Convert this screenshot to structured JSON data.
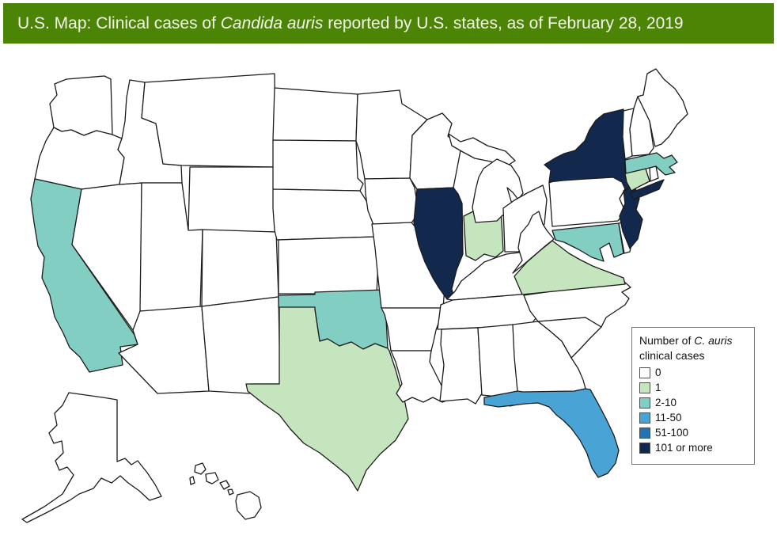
{
  "header": {
    "title_prefix": "U.S. Map: Clinical cases of ",
    "title_italic": "Candida auris",
    "title_suffix": " reported by U.S. states, as of February 28, 2019",
    "background_color": "#4c8405",
    "text_color": "#f4f8ec"
  },
  "legend": {
    "title_prefix": "Number of ",
    "title_italic": "C. auris",
    "title_line2": "clinical cases",
    "items": [
      {
        "label": "0",
        "color": "#ffffff"
      },
      {
        "label": "1",
        "color": "#c5e5bf"
      },
      {
        "label": "2-10",
        "color": "#83cec3"
      },
      {
        "label": "11-50",
        "color": "#4aa3d5"
      },
      {
        "label": "51-100",
        "color": "#2272b6"
      },
      {
        "label": "101 or more",
        "color": "#12294d"
      }
    ]
  },
  "map_data": {
    "type": "choropleth-us-states",
    "metric": "Candida auris clinical cases",
    "as_of": "February 28, 2019",
    "stroke_color": "#1c1c1c",
    "category_colors": {
      "0": "#ffffff",
      "1": "#c5e5bf",
      "2-10": "#83cec3",
      "11-50": "#4aa3d5",
      "51-100": "#2272b6",
      "101 or more": "#12294d"
    },
    "states": [
      {
        "abbr": "WA",
        "name": "Washington",
        "cases": "0"
      },
      {
        "abbr": "OR",
        "name": "Oregon",
        "cases": "0"
      },
      {
        "abbr": "CA",
        "name": "California",
        "cases": "2-10"
      },
      {
        "abbr": "NV",
        "name": "Nevada",
        "cases": "0"
      },
      {
        "abbr": "ID",
        "name": "Idaho",
        "cases": "0"
      },
      {
        "abbr": "MT",
        "name": "Montana",
        "cases": "0"
      },
      {
        "abbr": "WY",
        "name": "Wyoming",
        "cases": "0"
      },
      {
        "abbr": "UT",
        "name": "Utah",
        "cases": "0"
      },
      {
        "abbr": "CO",
        "name": "Colorado",
        "cases": "0"
      },
      {
        "abbr": "AZ",
        "name": "Arizona",
        "cases": "0"
      },
      {
        "abbr": "NM",
        "name": "New Mexico",
        "cases": "0"
      },
      {
        "abbr": "ND",
        "name": "North Dakota",
        "cases": "0"
      },
      {
        "abbr": "SD",
        "name": "South Dakota",
        "cases": "0"
      },
      {
        "abbr": "NE",
        "name": "Nebraska",
        "cases": "0"
      },
      {
        "abbr": "KS",
        "name": "Kansas",
        "cases": "0"
      },
      {
        "abbr": "OK",
        "name": "Oklahoma",
        "cases": "2-10"
      },
      {
        "abbr": "TX",
        "name": "Texas",
        "cases": "1"
      },
      {
        "abbr": "MN",
        "name": "Minnesota",
        "cases": "0"
      },
      {
        "abbr": "IA",
        "name": "Iowa",
        "cases": "0"
      },
      {
        "abbr": "MO",
        "name": "Missouri",
        "cases": "0"
      },
      {
        "abbr": "AR",
        "name": "Arkansas",
        "cases": "0"
      },
      {
        "abbr": "LA",
        "name": "Louisiana",
        "cases": "0"
      },
      {
        "abbr": "WI",
        "name": "Wisconsin",
        "cases": "0"
      },
      {
        "abbr": "IL",
        "name": "Illinois",
        "cases": "101 or more"
      },
      {
        "abbr": "IN",
        "name": "Indiana",
        "cases": "1"
      },
      {
        "abbr": "MI",
        "name": "Michigan",
        "cases": "0"
      },
      {
        "abbr": "OH",
        "name": "Ohio",
        "cases": "0"
      },
      {
        "abbr": "KY",
        "name": "Kentucky",
        "cases": "0"
      },
      {
        "abbr": "TN",
        "name": "Tennessee",
        "cases": "0"
      },
      {
        "abbr": "MS",
        "name": "Mississippi",
        "cases": "0"
      },
      {
        "abbr": "AL",
        "name": "Alabama",
        "cases": "0"
      },
      {
        "abbr": "GA",
        "name": "Georgia",
        "cases": "0"
      },
      {
        "abbr": "FL",
        "name": "Florida",
        "cases": "11-50"
      },
      {
        "abbr": "SC",
        "name": "South Carolina",
        "cases": "0"
      },
      {
        "abbr": "NC",
        "name": "North Carolina",
        "cases": "0"
      },
      {
        "abbr": "VA",
        "name": "Virginia",
        "cases": "1"
      },
      {
        "abbr": "WV",
        "name": "West Virginia",
        "cases": "0"
      },
      {
        "abbr": "MD",
        "name": "Maryland",
        "cases": "2-10"
      },
      {
        "abbr": "DE",
        "name": "Delaware",
        "cases": "0"
      },
      {
        "abbr": "PA",
        "name": "Pennsylvania",
        "cases": "0"
      },
      {
        "abbr": "NJ",
        "name": "New Jersey",
        "cases": "101 or more"
      },
      {
        "abbr": "NY",
        "name": "New York",
        "cases": "101 or more"
      },
      {
        "abbr": "CT",
        "name": "Connecticut",
        "cases": "1"
      },
      {
        "abbr": "RI",
        "name": "Rhode Island",
        "cases": "0"
      },
      {
        "abbr": "MA",
        "name": "Massachusetts",
        "cases": "2-10"
      },
      {
        "abbr": "VT",
        "name": "Vermont",
        "cases": "0"
      },
      {
        "abbr": "NH",
        "name": "New Hampshire",
        "cases": "0"
      },
      {
        "abbr": "ME",
        "name": "Maine",
        "cases": "0"
      },
      {
        "abbr": "AK",
        "name": "Alaska",
        "cases": "0"
      },
      {
        "abbr": "HI",
        "name": "Hawaii",
        "cases": "0"
      }
    ]
  }
}
